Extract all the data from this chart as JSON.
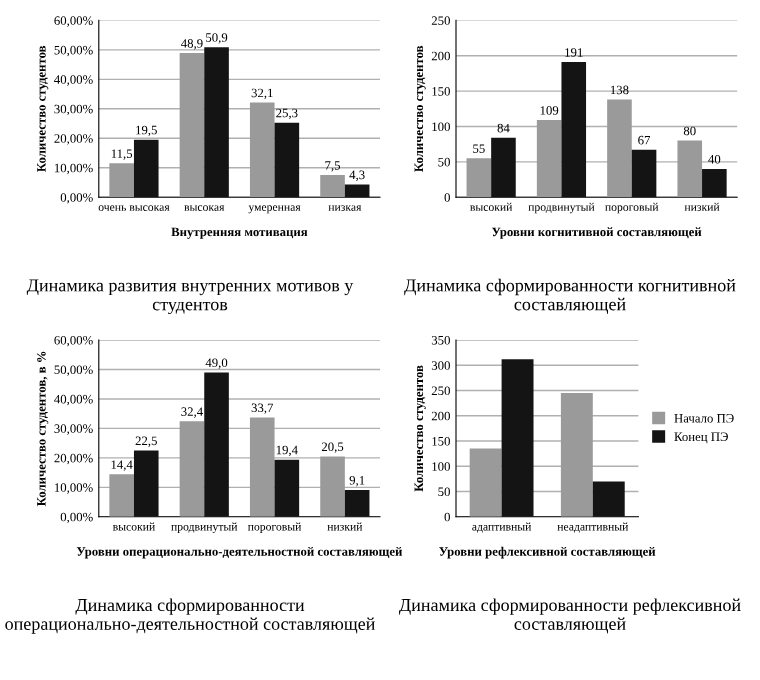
{
  "chart_data": [
    {
      "type": "bar",
      "title": "Динамика развития внутренних мотивов у студентов",
      "xlabel": "Внутренняя мотивация",
      "ylabel": "Количество студентов",
      "categories": [
        "очень высокая",
        "высокая",
        "умеренная",
        "низкая"
      ],
      "series": [
        {
          "color": "#9a9a9a",
          "values": [
            11.5,
            48.9,
            32.1,
            7.5
          ],
          "value_labels": [
            "11,5",
            "48,9",
            "32,1",
            "7,5"
          ]
        },
        {
          "color": "#141414",
          "values": [
            19.5,
            50.9,
            25.3,
            4.3
          ],
          "value_labels": [
            "19,5",
            "50,9",
            "25,3",
            "4,3"
          ]
        }
      ],
      "ylim": [
        0,
        60
      ],
      "yticks": [
        {
          "value": 0,
          "label": "0,00%"
        },
        {
          "value": 10,
          "label": "10,00%"
        },
        {
          "value": 20,
          "label": "20,00%"
        },
        {
          "value": 30,
          "label": "30,00%"
        },
        {
          "value": 40,
          "label": "40,00%"
        },
        {
          "value": 50,
          "label": "50,00%"
        },
        {
          "value": 60,
          "label": "60,00%"
        }
      ],
      "grid": "y"
    },
    {
      "type": "bar",
      "title": "Динамика сформированности когнитивной составляющей",
      "xlabel": "Уровни когнитивной составляющей",
      "ylabel": "Количество студентов",
      "categories": [
        "высокий",
        "продвинутый",
        "пороговый",
        "низкий"
      ],
      "series": [
        {
          "color": "#9a9a9a",
          "values": [
            55,
            109,
            138,
            80
          ]
        },
        {
          "color": "#141414",
          "values": [
            84,
            191,
            67,
            40
          ]
        }
      ],
      "data_labels": true,
      "ylim": [
        0,
        250
      ],
      "yticks": [
        0,
        50,
        100,
        150,
        200,
        250
      ],
      "grid": "y"
    },
    {
      "type": "bar",
      "title": "Динамика сформированности операционально-деятельностной составляющей",
      "xlabel": "Уровни операционально-деятельностной составляющей",
      "ylabel": "Количество студентов, в %",
      "categories": [
        "высокий",
        "продвинутый",
        "пороговый",
        "низкий"
      ],
      "series": [
        {
          "color": "#9a9a9a",
          "values": [
            14.4,
            32.4,
            33.7,
            20.5
          ],
          "value_labels": [
            "14,4",
            "32,4",
            "33,7",
            "20,5"
          ]
        },
        {
          "color": "#141414",
          "values": [
            22.5,
            49.0,
            19.4,
            9.1
          ],
          "value_labels": [
            "22,5",
            "49,0",
            "19,4",
            "9,1"
          ]
        }
      ],
      "ylim": [
        0,
        60
      ],
      "yticks": [
        {
          "value": 0,
          "label": "0,00%"
        },
        {
          "value": 10,
          "label": "10,00%"
        },
        {
          "value": 20,
          "label": "20,00%"
        },
        {
          "value": 30,
          "label": "30,00%"
        },
        {
          "value": 40,
          "label": "40,00%"
        },
        {
          "value": 50,
          "label": "50,00%"
        },
        {
          "value": 60,
          "label": "60,00%"
        }
      ],
      "grid": "y"
    },
    {
      "type": "bar",
      "title": "Динамика сформированности рефлексивной составляющей",
      "xlabel": "Уровни рефлексивной составляющей",
      "ylabel": "Количество студентов",
      "categories": [
        "адаптивный",
        "неадаптивный"
      ],
      "series": [
        {
          "name": "Начало ПЭ",
          "color": "#9a9a9a",
          "values": [
            135,
            245
          ]
        },
        {
          "name": "Конец ПЭ",
          "color": "#141414",
          "values": [
            312,
            70
          ]
        }
      ],
      "ylim": [
        0,
        350
      ],
      "yticks": [
        0,
        50,
        100,
        150,
        200,
        250,
        300,
        350
      ],
      "grid": "y",
      "legend": "right"
    }
  ]
}
